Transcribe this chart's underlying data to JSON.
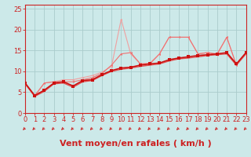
{
  "xlabel": "Vent moyen/en rafales ( km/h )",
  "xlim": [
    0,
    23
  ],
  "ylim": [
    0,
    26
  ],
  "yticks": [
    0,
    5,
    10,
    15,
    20,
    25
  ],
  "xticks": [
    0,
    1,
    2,
    3,
    4,
    5,
    6,
    7,
    8,
    9,
    10,
    11,
    12,
    13,
    14,
    15,
    16,
    17,
    18,
    19,
    20,
    21,
    22,
    23
  ],
  "bg_color": "#cce9e9",
  "grid_color": "#aacccc",
  "x": [
    0,
    1,
    2,
    3,
    4,
    5,
    6,
    7,
    8,
    9,
    10,
    11,
    12,
    13,
    14,
    15,
    16,
    17,
    18,
    19,
    20,
    21,
    22,
    23
  ],
  "trend1": [
    7.2,
    4.2,
    5.5,
    7.2,
    7.5,
    6.5,
    7.8,
    8.0,
    9.2,
    10.2,
    10.8,
    11.0,
    11.5,
    11.8,
    12.0,
    12.8,
    13.2,
    13.5,
    13.8,
    14.0,
    14.2,
    14.5,
    11.8,
    14.5
  ],
  "trend2": [
    7.0,
    4.0,
    5.2,
    7.0,
    7.2,
    6.2,
    7.5,
    7.8,
    9.0,
    10.0,
    10.5,
    10.8,
    11.2,
    11.5,
    11.8,
    12.5,
    13.0,
    13.2,
    13.5,
    13.8,
    14.0,
    14.2,
    11.5,
    14.2
  ],
  "volatile1": [
    7.2,
    4.2,
    7.2,
    7.5,
    7.5,
    7.5,
    8.0,
    8.5,
    9.5,
    11.5,
    14.2,
    14.5,
    11.8,
    11.8,
    14.2,
    18.2,
    18.2,
    18.2,
    14.2,
    14.5,
    14.2,
    18.2,
    11.5,
    14.5
  ],
  "volatile2": [
    7.2,
    4.0,
    7.2,
    7.5,
    8.0,
    8.0,
    8.5,
    9.0,
    9.8,
    11.2,
    22.5,
    14.2,
    11.8,
    12.0,
    14.2,
    18.2,
    18.2,
    18.2,
    14.2,
    14.5,
    14.0,
    18.2,
    11.5,
    14.2
  ],
  "color_dark": "#cc1111",
  "color_medium": "#e05050",
  "color_light1": "#f07070",
  "color_light2": "#f0a0a0",
  "axis_color": "#cc2222",
  "tick_color": "#cc2222",
  "label_color": "#cc2222",
  "arrow_color": "#cc2222",
  "tick_fontsize": 6,
  "label_fontsize": 8
}
